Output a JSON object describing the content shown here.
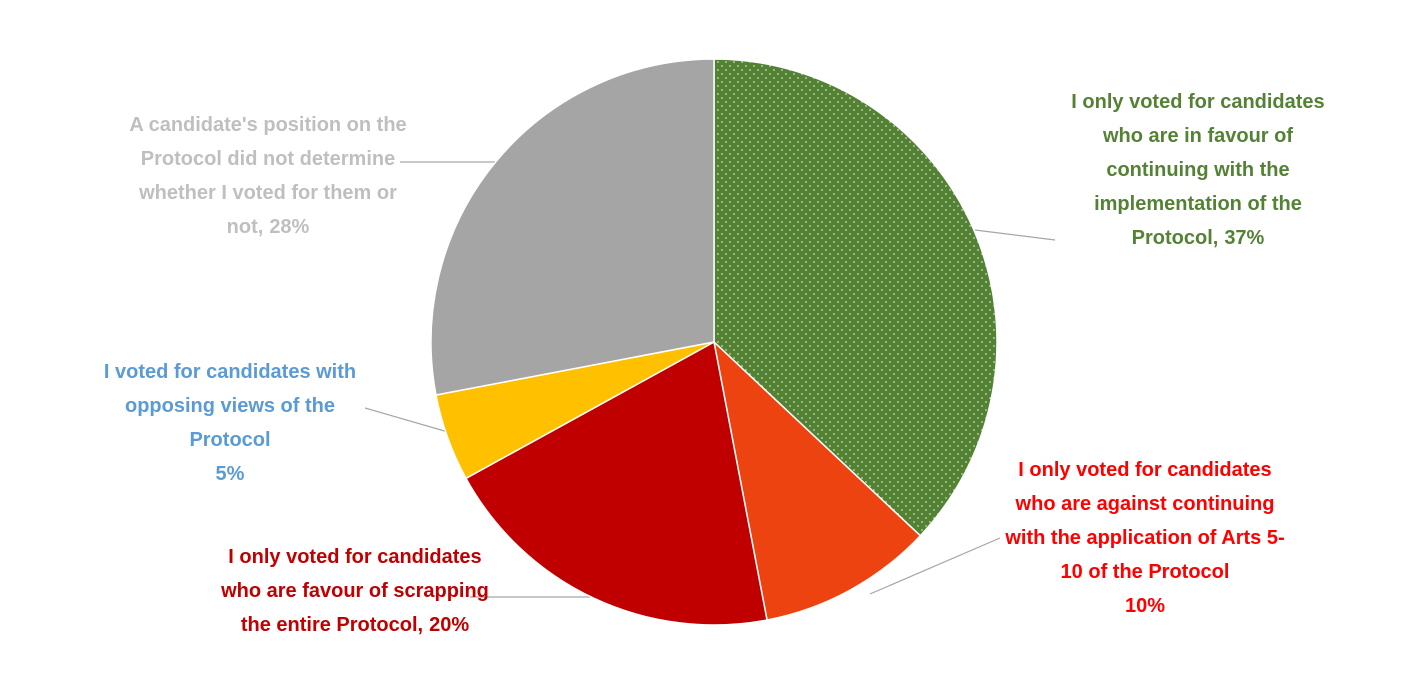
{
  "chart_data": {
    "type": "pie",
    "categories": [
      "I only voted for candidates who are in favour of continuing with the implementation of the Protocol,",
      "I only voted for candidates who are against continuing with the application of Arts 5-10 of the Protocol",
      "I only voted for candidates who are favour of scrapping the entire Protocol,",
      "I voted for candidates with opposing views of the Protocol",
      "A candidate's position on the Protocol did not determine whether I voted for them or not,"
    ],
    "values": [
      37,
      10,
      20,
      5,
      28
    ],
    "value_labels": [
      "37%",
      "10%",
      "20%",
      "5%",
      "28%"
    ],
    "colors": [
      "#548235",
      "#ED4310",
      "#C00000",
      "#FFC000",
      "#A5A5A5"
    ],
    "label_colors": [
      "#548235",
      "#FF0000",
      "#C00000",
      "#5B9BD5",
      "#BFBFBF"
    ]
  }
}
